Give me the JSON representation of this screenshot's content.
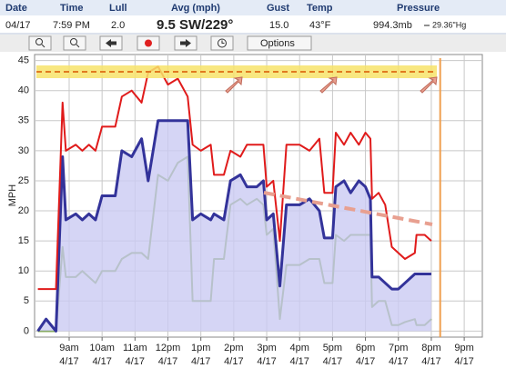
{
  "header": {
    "labels": [
      "Date",
      "Time",
      "Lull",
      "Avg (mph)",
      "Gust",
      "Temp",
      "Pressure"
    ],
    "date": "04/17",
    "time": "7:59 PM",
    "lull": "2.0",
    "avg": "9.5 SW/229°",
    "gust": "15.0",
    "temp": "43°F",
    "pressure_mb": "994.3mb",
    "pressure_hg": "29.36\"Hg"
  },
  "toolbar": {
    "options": "Options"
  },
  "chart_data": {
    "type": "line",
    "y_label": "MPH",
    "xlim": [
      7.95,
      21.55
    ],
    "ylim": [
      -1,
      46
    ],
    "yticks": [
      0,
      5,
      10,
      15,
      20,
      25,
      30,
      35,
      40,
      45
    ],
    "xticks": [
      {
        "value": 9,
        "label": "9am"
      },
      {
        "value": 10,
        "label": "10am"
      },
      {
        "value": 11,
        "label": "11am"
      },
      {
        "value": 12,
        "label": "12pm"
      },
      {
        "value": 13,
        "label": "1pm"
      },
      {
        "value": 14,
        "label": "2pm"
      },
      {
        "value": 15,
        "label": "3pm"
      },
      {
        "value": 16,
        "label": "4pm"
      },
      {
        "value": 17,
        "label": "5pm"
      },
      {
        "value": 18,
        "label": "6pm"
      },
      {
        "value": 19,
        "label": "7pm"
      },
      {
        "value": 20,
        "label": "8pm"
      },
      {
        "value": 21,
        "label": "9pm"
      }
    ],
    "xtick_dates": [
      "4/17",
      "4/17",
      "4/17",
      "4/17",
      "4/17",
      "4/17",
      "4/17",
      "4/17",
      "4/17",
      "4/17",
      "4/17",
      "4/17",
      "4/17"
    ],
    "grid": true,
    "current_time": 20.27,
    "x": [
      8.05,
      8.3,
      8.6,
      8.8,
      8.9,
      9.2,
      9.4,
      9.6,
      9.8,
      10.0,
      10.4,
      10.6,
      10.9,
      11.2,
      11.4,
      11.7,
      12.0,
      12.3,
      12.6,
      12.75,
      13.0,
      13.3,
      13.4,
      13.7,
      13.9,
      14.2,
      14.4,
      14.7,
      14.9,
      15.0,
      15.2,
      15.4,
      15.6,
      16.0,
      16.3,
      16.6,
      16.75,
      17.0,
      17.1,
      17.35,
      17.55,
      17.8,
      18.0,
      18.15,
      18.2,
      18.4,
      18.6,
      18.8,
      19.0,
      19.2,
      19.5,
      19.55,
      19.8,
      20.0
    ],
    "series": [
      {
        "color": "#6a9a2a",
        "values": [
          0,
          0,
          0,
          14,
          9,
          9,
          10,
          9,
          8,
          10,
          10,
          12,
          13,
          13,
          12,
          26,
          25,
          28,
          29,
          5,
          5,
          5,
          12,
          12,
          21,
          22,
          21,
          22,
          21,
          16,
          17,
          2,
          11,
          11,
          12,
          12,
          8,
          8,
          16,
          15,
          16,
          16,
          16,
          16,
          4,
          5,
          5,
          1,
          1,
          1.5,
          2,
          1,
          1,
          2
        ]
      },
      {
        "color": "#33339a",
        "fill": "#cbcbf3",
        "values": [
          0,
          2,
          0,
          29,
          18.5,
          19.5,
          18.5,
          19.5,
          18.5,
          22.5,
          22.5,
          30,
          29,
          32,
          25,
          35,
          35,
          35,
          35,
          18.5,
          19.5,
          18.5,
          19.5,
          18.5,
          25,
          26,
          24,
          24,
          25,
          18.5,
          19.5,
          7.5,
          21,
          21,
          22,
          20,
          15.5,
          15.5,
          24,
          25,
          23,
          25,
          24,
          22,
          9,
          9,
          8,
          7,
          7,
          8,
          9.5,
          9.5,
          9.5,
          9.5
        ]
      },
      {
        "color": "#e01b1b",
        "values": [
          7,
          7,
          7,
          38,
          30,
          31,
          30,
          31,
          30,
          34,
          34,
          39,
          40,
          38,
          43,
          44,
          41,
          42,
          39,
          31,
          30,
          31,
          26,
          26,
          30,
          29,
          31,
          31,
          31,
          24,
          25,
          15,
          31,
          31,
          30,
          32,
          23,
          23,
          33,
          31,
          33,
          31,
          33,
          32,
          22,
          23,
          21,
          14,
          13,
          12,
          13,
          16,
          16,
          15
        ]
      }
    ]
  }
}
